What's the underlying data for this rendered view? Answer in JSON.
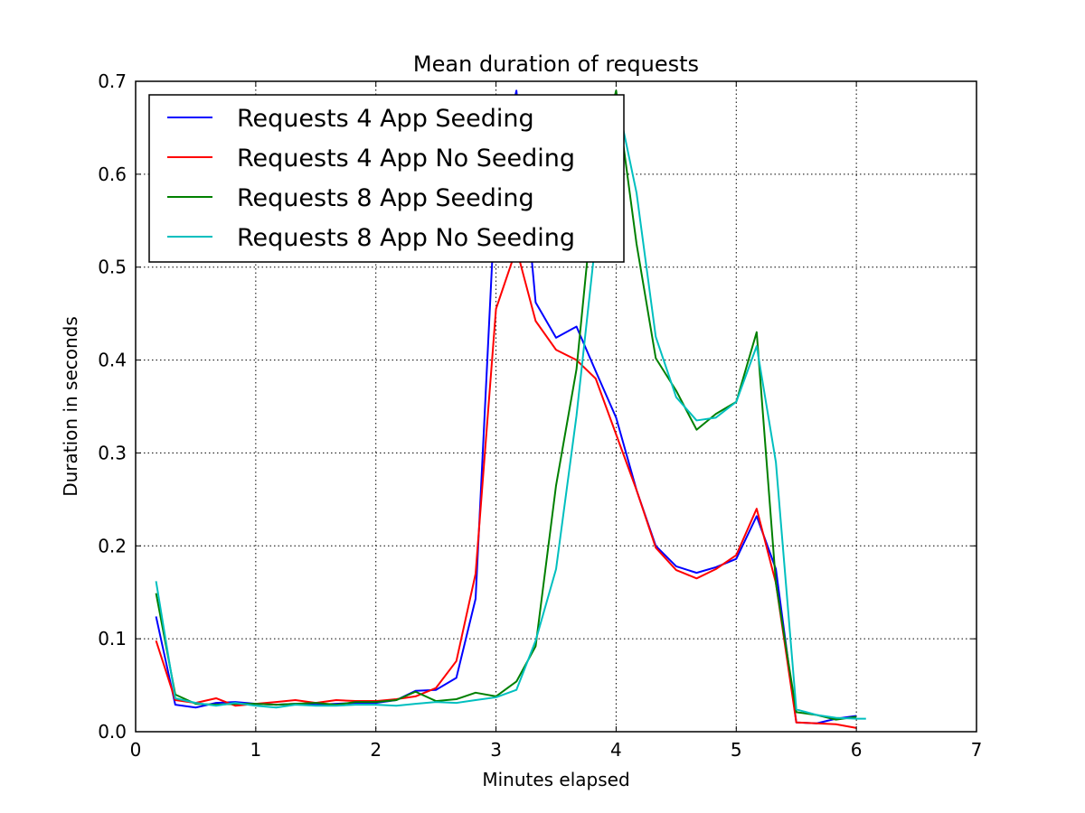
{
  "chart_data": {
    "type": "line",
    "title": "Mean duration of requests",
    "xlabel": "Minutes elapsed",
    "ylabel": "Duration in seconds",
    "xlim": [
      0,
      7
    ],
    "ylim": [
      0,
      0.7
    ],
    "xticks": [
      "0",
      "1",
      "2",
      "3",
      "4",
      "5",
      "6",
      "7"
    ],
    "yticks": [
      "0.0",
      "0.1",
      "0.2",
      "0.3",
      "0.4",
      "0.5",
      "0.6",
      "0.7"
    ],
    "grid": true,
    "grid_style": "dotted",
    "legend_position": "upper-left",
    "series": [
      {
        "name": "Requests 4 App Seeding",
        "color": "#0000ff",
        "x": [
          0.17,
          0.33,
          0.5,
          0.67,
          0.83,
          1.0,
          1.17,
          1.33,
          1.5,
          1.67,
          1.83,
          2.0,
          2.17,
          2.33,
          2.5,
          2.67,
          2.83,
          3.0,
          3.17,
          3.33,
          3.5,
          3.67,
          3.83,
          4.0,
          4.17,
          4.33,
          4.5,
          4.67,
          4.83,
          5.0,
          5.17,
          5.33,
          5.5,
          5.67,
          5.83,
          6.0
        ],
        "y": [
          0.124,
          0.029,
          0.026,
          0.031,
          0.032,
          0.03,
          0.029,
          0.03,
          0.029,
          0.03,
          0.031,
          0.031,
          0.034,
          0.044,
          0.045,
          0.058,
          0.143,
          0.59,
          0.69,
          0.462,
          0.424,
          0.436,
          0.388,
          0.338,
          0.26,
          0.2,
          0.178,
          0.171,
          0.177,
          0.186,
          0.232,
          0.175,
          0.01,
          0.009,
          0.014,
          0.017
        ]
      },
      {
        "name": "Requests 4 App No Seeding",
        "color": "#ff0000",
        "x": [
          0.17,
          0.33,
          0.5,
          0.67,
          0.83,
          1.0,
          1.17,
          1.33,
          1.5,
          1.67,
          1.83,
          2.0,
          2.17,
          2.33,
          2.5,
          2.67,
          2.83,
          3.0,
          3.17,
          3.33,
          3.5,
          3.67,
          3.83,
          4.0,
          4.17,
          4.33,
          4.5,
          4.67,
          4.83,
          5.0,
          5.17,
          5.33,
          5.5,
          5.67,
          5.83,
          6.0
        ],
        "y": [
          0.098,
          0.034,
          0.031,
          0.036,
          0.028,
          0.03,
          0.032,
          0.034,
          0.031,
          0.034,
          0.033,
          0.033,
          0.035,
          0.038,
          0.047,
          0.076,
          0.17,
          0.455,
          0.52,
          0.442,
          0.411,
          0.4,
          0.38,
          0.32,
          0.26,
          0.198,
          0.174,
          0.165,
          0.175,
          0.19,
          0.24,
          0.16,
          0.01,
          0.009,
          0.008,
          0.004
        ]
      },
      {
        "name": "Requests 8 App Seeding",
        "color": "#008000",
        "x": [
          0.17,
          0.33,
          0.5,
          0.67,
          0.83,
          1.0,
          1.17,
          1.33,
          1.5,
          1.67,
          1.83,
          2.0,
          2.17,
          2.33,
          2.5,
          2.67,
          2.83,
          3.0,
          3.17,
          3.33,
          3.5,
          3.67,
          3.83,
          4.0,
          4.17,
          4.33,
          4.5,
          4.67,
          4.83,
          5.0,
          5.17,
          5.33,
          5.5,
          5.67,
          5.83,
          6.0
        ],
        "y": [
          0.149,
          0.04,
          0.03,
          0.029,
          0.03,
          0.03,
          0.029,
          0.03,
          0.031,
          0.029,
          0.032,
          0.032,
          0.034,
          0.043,
          0.033,
          0.035,
          0.042,
          0.038,
          0.054,
          0.092,
          0.265,
          0.39,
          0.6,
          0.69,
          0.525,
          0.402,
          0.367,
          0.325,
          0.342,
          0.355,
          0.43,
          0.16,
          0.021,
          0.018,
          0.013,
          0.016
        ]
      },
      {
        "name": "Requests 8 App No Seeding",
        "color": "#00bfbf",
        "x": [
          0.17,
          0.33,
          0.5,
          0.67,
          0.83,
          1.0,
          1.17,
          1.33,
          1.5,
          1.67,
          1.83,
          2.0,
          2.17,
          2.33,
          2.5,
          2.67,
          2.83,
          3.0,
          3.17,
          3.33,
          3.5,
          3.67,
          3.83,
          4.0,
          4.17,
          4.33,
          4.5,
          4.67,
          4.83,
          5.0,
          5.17,
          5.33,
          5.5,
          5.67,
          5.83,
          6.0,
          6.08
        ],
        "y": [
          0.162,
          0.036,
          0.031,
          0.028,
          0.031,
          0.028,
          0.026,
          0.029,
          0.028,
          0.028,
          0.029,
          0.029,
          0.028,
          0.03,
          0.032,
          0.031,
          0.034,
          0.037,
          0.045,
          0.098,
          0.175,
          0.34,
          0.53,
          0.685,
          0.58,
          0.425,
          0.36,
          0.335,
          0.338,
          0.355,
          0.415,
          0.29,
          0.024,
          0.018,
          0.015,
          0.014,
          0.014
        ]
      }
    ]
  }
}
